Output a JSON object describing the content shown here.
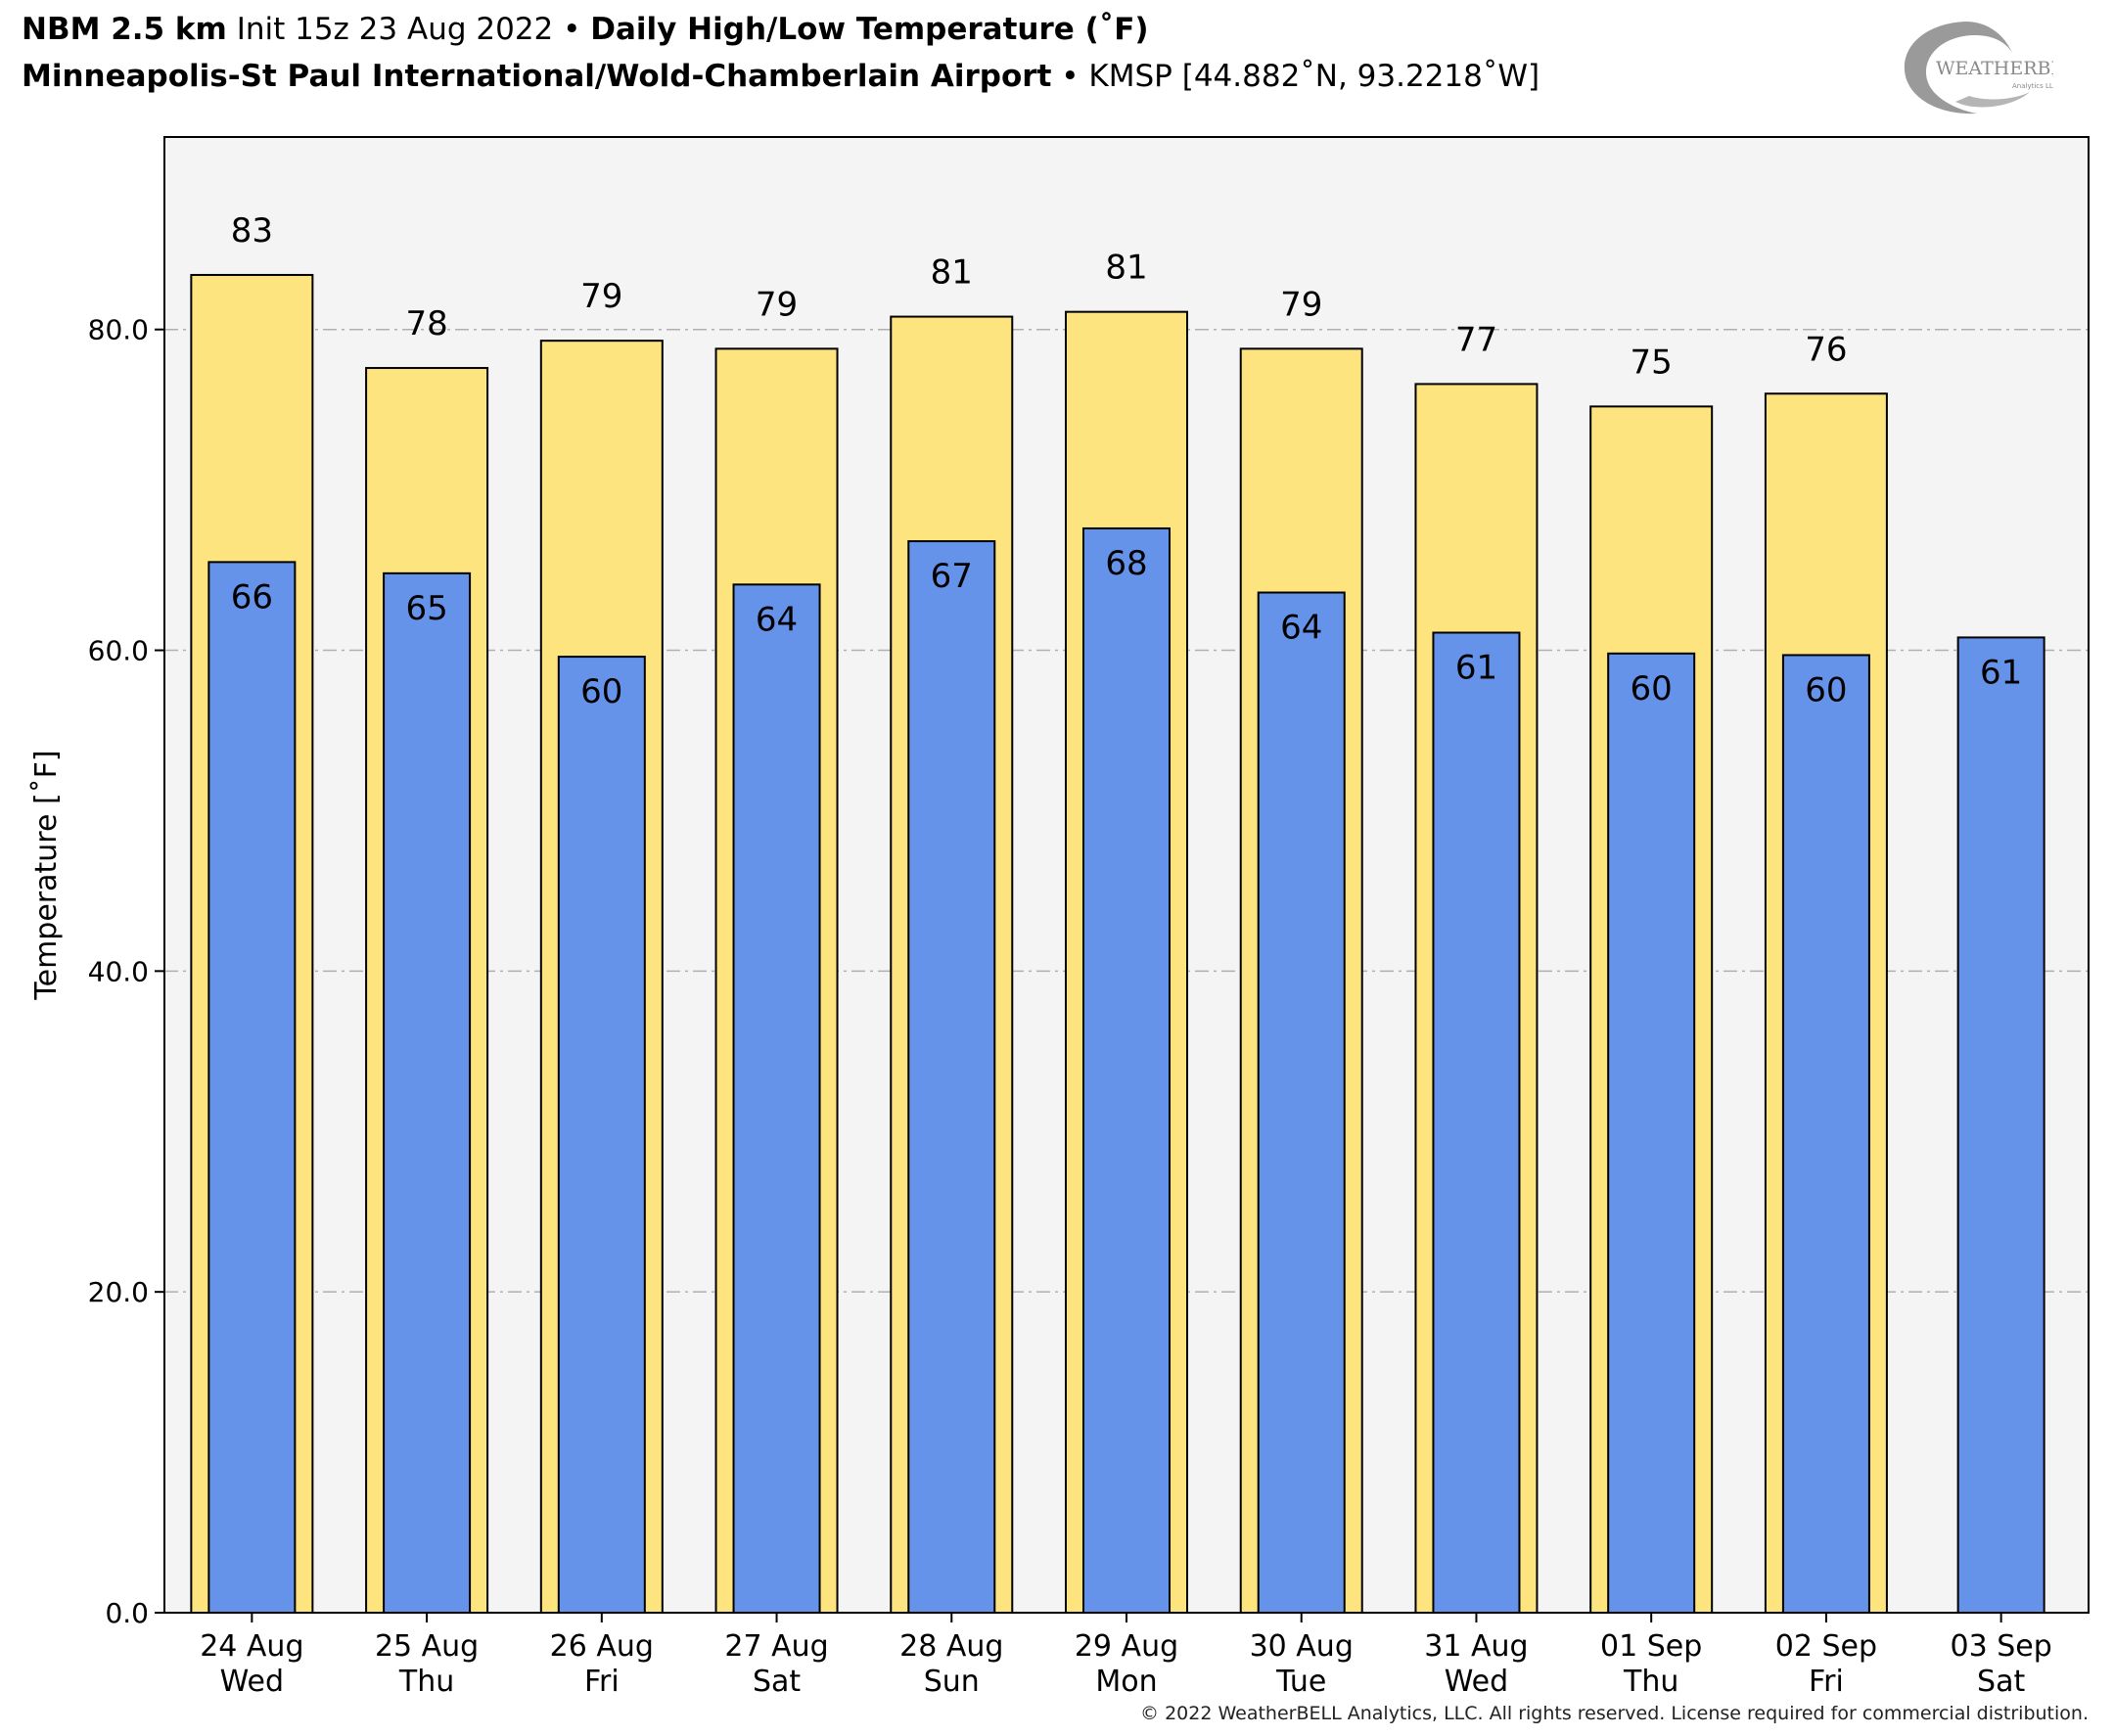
{
  "title": {
    "model": "NBM 2.5 km",
    "init": "Init 15z 23 Aug 2022",
    "sep": "•",
    "product": "Daily High/Low Temperature (˚F)",
    "station_name": "Minneapolis-St Paul International/Wold-Chamberlain Airport",
    "station_info": "KMSP [44.882˚N, 93.2218˚W]"
  },
  "logo": {
    "text": "WEATHERBELL",
    "sub": "Analytics LLC",
    "icon": "weatherbell-swirl-logo"
  },
  "footer": "© 2022 WeatherBELL Analytics, LLC. All rights reserved. License required for commercial distribution.",
  "colors": {
    "high": "#fde47f",
    "low": "#6593ea",
    "plot_bg": "#f4f4f5",
    "grid": "#b0b0b0"
  },
  "chart_data": {
    "type": "bar",
    "ylabel": "Temperature [˚F]",
    "ylim": [
      0,
      92
    ],
    "yticks": [
      0,
      20,
      40,
      60,
      80
    ],
    "ytick_labels": [
      "0.0",
      "20.0",
      "40.0",
      "60.0",
      "80.0"
    ],
    "grid": "horizontal dashed",
    "categories": [
      "24 Aug\nWed",
      "25 Aug\nThu",
      "26 Aug\nFri",
      "27 Aug\nSat",
      "28 Aug\nSun",
      "29 Aug\nMon",
      "30 Aug\nTue",
      "31 Aug\nWed",
      "01 Sep\nThu",
      "02 Sep\nFri",
      "03 Sep\nSat"
    ],
    "series": [
      {
        "key": "high",
        "values": [
          83.4,
          77.6,
          79.3,
          78.8,
          80.8,
          81.1,
          78.8,
          76.6,
          75.2,
          76.0,
          null
        ],
        "labels": [
          "83",
          "78",
          "79",
          "79",
          "81",
          "81",
          "79",
          "77",
          "75",
          "76",
          ""
        ]
      },
      {
        "key": "low",
        "values": [
          65.5,
          64.8,
          59.6,
          64.1,
          66.8,
          67.6,
          63.6,
          61.1,
          59.8,
          59.7,
          60.8
        ],
        "labels": [
          "66",
          "65",
          "60",
          "64",
          "67",
          "68",
          "64",
          "61",
          "60",
          "60",
          "61"
        ]
      }
    ]
  }
}
